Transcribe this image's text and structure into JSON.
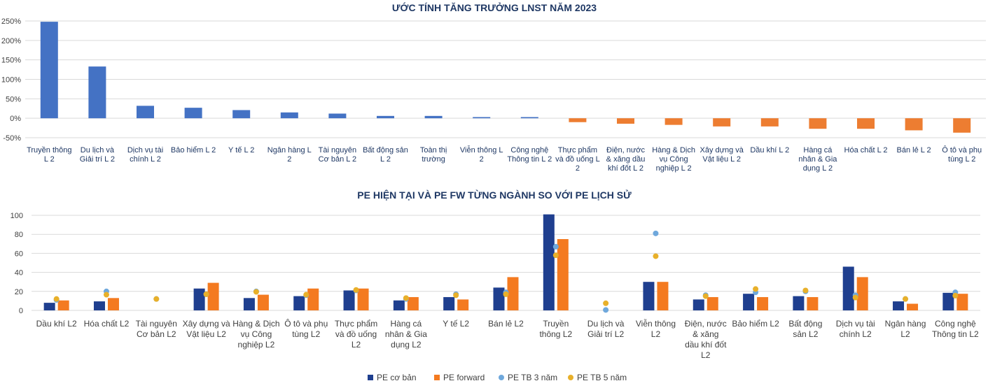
{
  "chart_data": [
    {
      "type": "bar",
      "title": "ƯỚC TÍNH TĂNG TRƯỞNG LNST NĂM 2023",
      "yticks": [
        "250%",
        "200%",
        "150%",
        "100%",
        "50%",
        "0%",
        "-50%"
      ],
      "ylim": [
        -50,
        250
      ],
      "grid": true,
      "colors": {
        "positive": "#4472c4",
        "negative": "#ed7d31"
      },
      "categories": [
        [
          "Truyền thông",
          "L 2"
        ],
        [
          "Du lịch và",
          "Giải trí L 2"
        ],
        [
          "Dịch vụ tài",
          "chính L 2"
        ],
        [
          "Bảo hiểm L 2"
        ],
        [
          "Y tế L 2"
        ],
        [
          "Ngân hàng L",
          "2"
        ],
        [
          "Tài nguyên",
          "Cơ bản L 2"
        ],
        [
          "Bất động sản",
          "L 2"
        ],
        [
          "Toàn thị",
          "trường"
        ],
        [
          "Viễn thông L",
          "2"
        ],
        [
          "Công nghệ",
          "Thông tin L 2"
        ],
        [
          "Thực phẩm",
          "và đồ uống L",
          "2"
        ],
        [
          "Điện, nước",
          "& xăng dầu",
          "khí đốt L 2"
        ],
        [
          "Hàng & Dịch",
          "vụ Công",
          "nghiệp L 2"
        ],
        [
          "Xây dựng và",
          "Vật liệu L 2"
        ],
        [
          "Dầu khí L 2"
        ],
        [
          "Hàng cá",
          "nhân & Gia",
          "dụng L 2"
        ],
        [
          "Hóa chất L 2"
        ],
        [
          "Bán lẻ L 2"
        ],
        [
          "Ô tô và phụ",
          "tùng L 2"
        ]
      ],
      "values": [
        248,
        133,
        32,
        27,
        21,
        15,
        12,
        6,
        6,
        3,
        3,
        -10,
        -14,
        -17,
        -21,
        -21,
        -27,
        -27,
        -31,
        -37
      ]
    },
    {
      "type": "bar",
      "title": "PE HIỆN TẠI VÀ PE FW TỪNG NGÀNH SO VỚI PE LỊCH SỬ",
      "yticks": [
        "100",
        "80",
        "60",
        "40",
        "20",
        "0"
      ],
      "ylim": [
        0,
        100
      ],
      "grid": true,
      "categories": [
        [
          "Dầu khí L2"
        ],
        [
          "Hóa chất L2"
        ],
        [
          "Tài nguyên",
          "Cơ bản L2"
        ],
        [
          "Xây dựng và",
          "Vật liệu L2"
        ],
        [
          "Hàng & Dịch",
          "vụ Công",
          "nghiệp L2"
        ],
        [
          "Ô tô và phụ",
          "tùng L2"
        ],
        [
          "Thực phẩm",
          "và đồ uống",
          "L2"
        ],
        [
          "Hàng cá",
          "nhân & Gia",
          "dụng L2"
        ],
        [
          "Y tế L2"
        ],
        [
          "Bán lẻ L2"
        ],
        [
          "Truyền",
          "thông L2"
        ],
        [
          "Du lịch và",
          "Giải trí L2"
        ],
        [
          "Viễn thông",
          "L2"
        ],
        [
          "Điện, nước",
          "& xăng",
          "dầu khí đốt",
          "L2"
        ],
        [
          "Bảo hiểm L2"
        ],
        [
          "Bất động",
          "sản L2"
        ],
        [
          "Dịch vụ tài",
          "chính L2"
        ],
        [
          "Ngân hàng",
          "L2"
        ],
        [
          "Công nghệ",
          "Thông tin L2"
        ]
      ],
      "series": [
        {
          "name": "PE cơ bản",
          "kind": "bar",
          "color": "#1f3f8f",
          "values": [
            8,
            9.5,
            0,
            23,
            13,
            15,
            21,
            10.5,
            14,
            24,
            101,
            0,
            30,
            11.5,
            17.5,
            15,
            46,
            9.5,
            18.5
          ]
        },
        {
          "name": "PE forward",
          "kind": "bar",
          "color": "#f47a20",
          "values": [
            10.5,
            13,
            0,
            29,
            16.5,
            23,
            23,
            14,
            11.5,
            35,
            75,
            0,
            30,
            14,
            14,
            14,
            35,
            7,
            17.5
          ]
        },
        {
          "name": "PE TB 3 năm",
          "kind": "point",
          "color": "#6fa8dc",
          "values": [
            11,
            20,
            12,
            17,
            20,
            16,
            21,
            12,
            17,
            19,
            67,
            0.5,
            81,
            16,
            19,
            20,
            16,
            12,
            19
          ]
        },
        {
          "name": "PE TB 5 năm",
          "kind": "point",
          "color": "#e8b02a",
          "values": [
            12,
            16.5,
            12,
            17,
            19.5,
            16.5,
            21.5,
            13,
            16,
            17,
            58,
            7.5,
            57,
            15,
            22.5,
            21,
            13.5,
            12,
            15.5
          ]
        }
      ],
      "legend_position": "bottom"
    }
  ]
}
